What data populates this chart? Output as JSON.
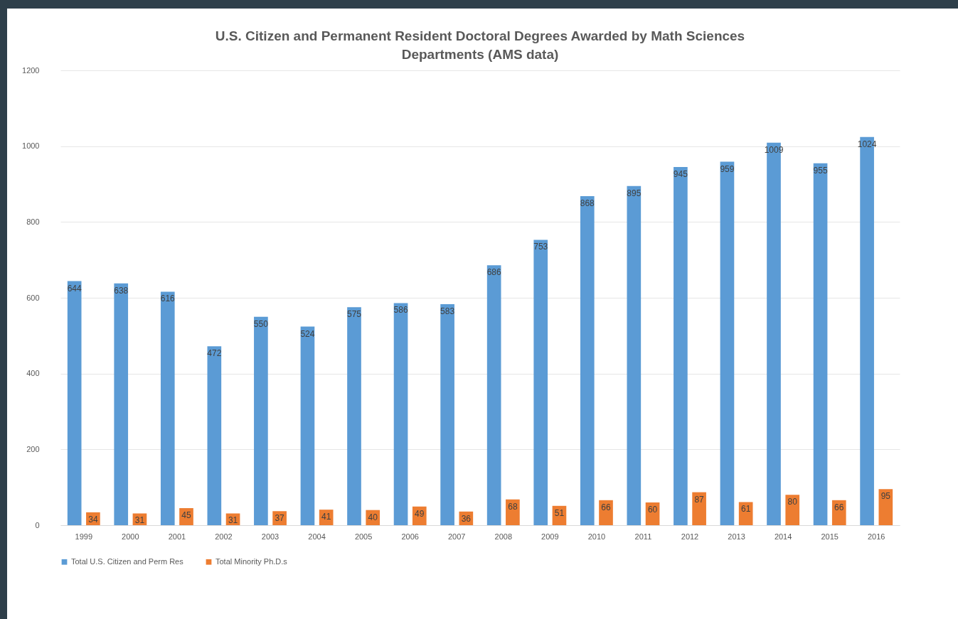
{
  "chart_data": {
    "type": "bar",
    "title": "U.S. Citizen and Permanent Resident Doctoral Degrees Awarded by Math Sciences Departments (AMS data)",
    "categories": [
      "1999",
      "2000",
      "2001",
      "2002",
      "2003",
      "2004",
      "2005",
      "2006",
      "2007",
      "2008",
      "2009",
      "2010",
      "2011",
      "2012",
      "2013",
      "2014",
      "2015",
      "2016"
    ],
    "series": [
      {
        "name": "Total U.S. Citizen and Perm Res",
        "color": "#5b9bd5",
        "values": [
          644,
          638,
          616,
          472,
          550,
          524,
          575,
          586,
          583,
          686,
          753,
          868,
          895,
          945,
          959,
          1009,
          955,
          1024
        ]
      },
      {
        "name": "Total Minority Ph.D.s",
        "color": "#ed7d31",
        "values": [
          34,
          31,
          45,
          31,
          37,
          41,
          40,
          49,
          36,
          68,
          51,
          66,
          60,
          87,
          61,
          80,
          66,
          95
        ]
      }
    ],
    "ylim": [
      0,
      1200
    ],
    "yticks": [
      0,
      200,
      400,
      600,
      800,
      1000,
      1200
    ],
    "grid": "y",
    "legend": "bottom",
    "data_labels": true
  }
}
